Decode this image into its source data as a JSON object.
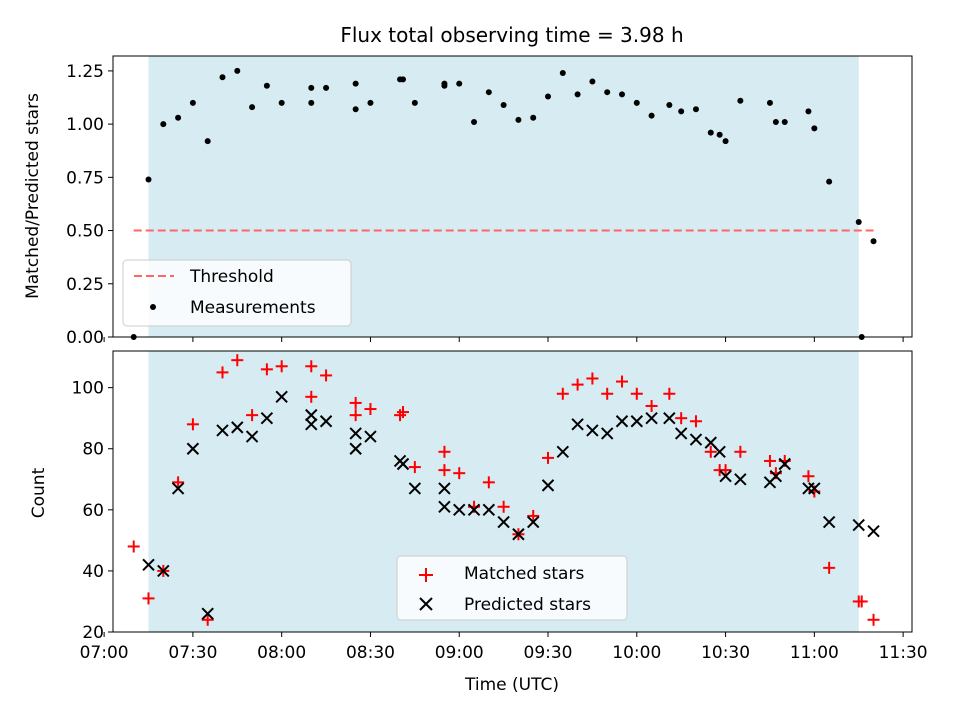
{
  "chart_data": [
    {
      "type": "scatter",
      "title": "Flux total observing time = 3.98 h",
      "ylabel": "Matched/Predicted stars",
      "xlabel": "",
      "xlim": [
        "07:03",
        "11:33"
      ],
      "ylim": [
        0,
        1.32
      ],
      "yticks": [
        "0.00",
        "0.25",
        "0.50",
        "0.75",
        "1.00",
        "1.25"
      ],
      "shaded_region": {
        "start": "07:15",
        "end": "11:15",
        "color": "#add8e6"
      },
      "threshold": {
        "name": "Threshold",
        "value": 0.5,
        "x_range": [
          "07:10",
          "11:20"
        ],
        "color": "#ff6666"
      },
      "series": [
        {
          "name": "Measurements",
          "color": "#000000",
          "x": [
            "07:10",
            "07:15",
            "07:20",
            "07:25",
            "07:30",
            "07:35",
            "07:40",
            "07:45",
            "07:50",
            "07:55",
            "08:00",
            "08:10",
            "08:10",
            "08:15",
            "08:25",
            "08:25",
            "08:30",
            "08:40",
            "08:41",
            "08:45",
            "08:55",
            "08:55",
            "09:00",
            "09:05",
            "09:10",
            "09:15",
            "09:20",
            "09:25",
            "09:30",
            "09:35",
            "09:40",
            "09:45",
            "09:50",
            "09:55",
            "10:00",
            "10:05",
            "10:11",
            "10:15",
            "10:20",
            "10:25",
            "10:28",
            "10:30",
            "10:35",
            "10:45",
            "10:47",
            "10:50",
            "10:58",
            "11:00",
            "11:05",
            "11:15",
            "11:16",
            "11:20"
          ],
          "y": [
            0.0,
            0.74,
            1.0,
            1.03,
            1.1,
            0.92,
            1.22,
            1.25,
            1.08,
            1.18,
            1.1,
            1.1,
            1.17,
            1.17,
            1.19,
            1.07,
            1.1,
            1.21,
            1.21,
            1.1,
            1.18,
            1.19,
            1.19,
            1.01,
            1.15,
            1.09,
            1.02,
            1.03,
            1.13,
            1.24,
            1.14,
            1.2,
            1.15,
            1.14,
            1.1,
            1.04,
            1.09,
            1.06,
            1.07,
            0.96,
            0.95,
            0.92,
            1.11,
            1.1,
            1.01,
            1.01,
            1.06,
            0.98,
            0.73,
            0.54,
            0.0,
            0.45
          ]
        }
      ],
      "legend": {
        "placement": "lower-left",
        "entries": [
          "Threshold",
          "Measurements"
        ]
      }
    },
    {
      "type": "scatter",
      "title": "",
      "ylabel": "Count",
      "xlabel": "Time (UTC)",
      "xlim": [
        "07:03",
        "11:33"
      ],
      "ylim": [
        20,
        112
      ],
      "yticks": [
        "20",
        "40",
        "60",
        "80",
        "100"
      ],
      "xticks": [
        "07:00",
        "07:30",
        "08:00",
        "08:30",
        "09:00",
        "09:30",
        "10:00",
        "10:30",
        "11:00",
        "11:30"
      ],
      "shaded_region": {
        "start": "07:15",
        "end": "11:15",
        "color": "#add8e6"
      },
      "series": [
        {
          "name": "Matched stars",
          "marker": "+",
          "color": "#ff0000",
          "x": [
            "07:10",
            "07:15",
            "07:20",
            "07:25",
            "07:30",
            "07:35",
            "07:40",
            "07:45",
            "07:50",
            "07:55",
            "08:00",
            "08:10",
            "08:10",
            "08:15",
            "08:25",
            "08:25",
            "08:30",
            "08:40",
            "08:41",
            "08:45",
            "08:55",
            "08:55",
            "09:00",
            "09:05",
            "09:10",
            "09:15",
            "09:20",
            "09:25",
            "09:30",
            "09:35",
            "09:40",
            "09:45",
            "09:50",
            "09:55",
            "10:00",
            "10:05",
            "10:11",
            "10:15",
            "10:20",
            "10:25",
            "10:28",
            "10:30",
            "10:35",
            "10:45",
            "10:47",
            "10:50",
            "10:58",
            "11:00",
            "11:05",
            "11:15",
            "11:16",
            "11:20"
          ],
          "y": [
            48,
            31,
            40,
            69,
            88,
            24,
            105,
            109,
            91,
            106,
            107,
            97,
            107,
            104,
            95,
            91,
            93,
            91,
            92,
            74,
            79,
            73,
            72,
            61,
            69,
            61,
            52,
            58,
            77,
            98,
            101,
            103,
            98,
            102,
            98,
            94,
            98,
            90,
            89,
            79,
            73,
            73,
            79,
            76,
            72,
            76,
            71,
            66,
            41,
            30,
            30,
            24
          ]
        },
        {
          "name": "Predicted stars",
          "marker": "x",
          "color": "#000000",
          "x": [
            "07:15",
            "07:20",
            "07:25",
            "07:30",
            "07:35",
            "07:40",
            "07:45",
            "07:50",
            "07:55",
            "08:00",
            "08:10",
            "08:10",
            "08:15",
            "08:25",
            "08:25",
            "08:30",
            "08:40",
            "08:41",
            "08:45",
            "08:55",
            "08:55",
            "09:00",
            "09:05",
            "09:10",
            "09:15",
            "09:20",
            "09:25",
            "09:30",
            "09:35",
            "09:40",
            "09:45",
            "09:50",
            "09:55",
            "10:00",
            "10:05",
            "10:11",
            "10:15",
            "10:20",
            "10:25",
            "10:28",
            "10:30",
            "10:35",
            "10:45",
            "10:47",
            "10:50",
            "10:58",
            "11:00",
            "11:05",
            "11:15",
            "11:20"
          ],
          "y": [
            42,
            40,
            67,
            80,
            26,
            86,
            87,
            84,
            90,
            97,
            88,
            91,
            89,
            85,
            80,
            84,
            76,
            75,
            67,
            67,
            61,
            60,
            60,
            60,
            56,
            52,
            56,
            68,
            79,
            88,
            86,
            85,
            89,
            89,
            90,
            90,
            85,
            83,
            82,
            79,
            71,
            70,
            69,
            71,
            75,
            67,
            67,
            56,
            55,
            53
          ]
        }
      ],
      "legend": {
        "placement": "lower-center",
        "entries": [
          "Matched stars",
          "Predicted stars"
        ]
      }
    }
  ]
}
